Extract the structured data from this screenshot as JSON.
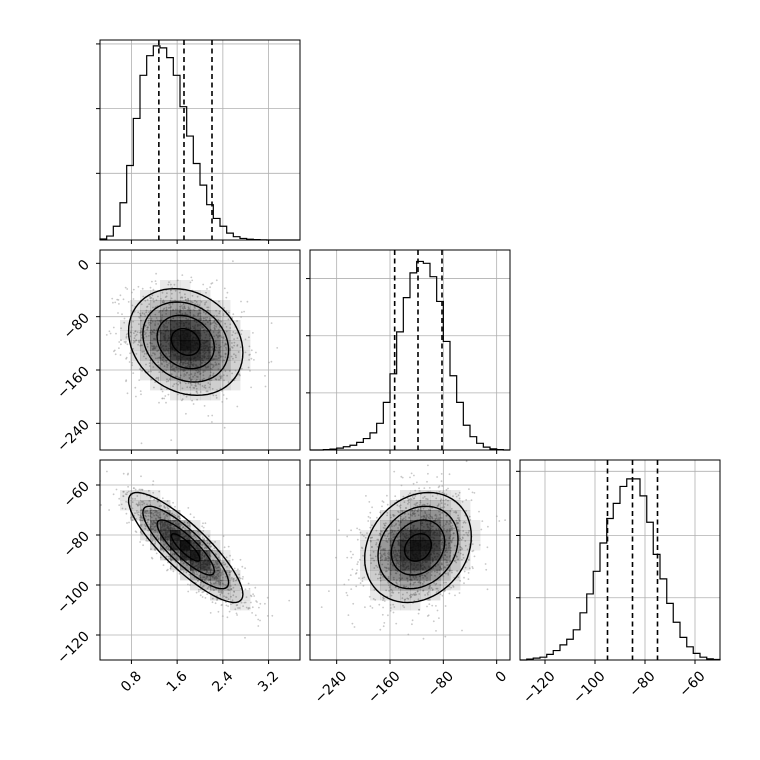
{
  "chart_data": {
    "type": "corner",
    "colors": {
      "line": "#000000",
      "grid": "#b0b0b0",
      "density": "#000000",
      "points": "#9a9a9a"
    },
    "grid": true,
    "parameters": [
      {
        "index": 0,
        "range": [
          0.25,
          3.75
        ],
        "ticks": [
          0.8,
          1.6,
          2.4,
          3.2
        ],
        "tick_labels": [
          "0.8",
          "1.6",
          "2.4",
          "3.2"
        ],
        "quantiles": [
          1.28,
          1.72,
          2.21
        ]
      },
      {
        "index": 1,
        "range": [
          -280,
          20
        ],
        "ticks": [
          -240,
          -160,
          -80,
          0
        ],
        "tick_labels": [
          "−240",
          "−160",
          "−80",
          "0"
        ],
        "quantiles": [
          -153,
          -118,
          -82
        ]
      },
      {
        "index": 2,
        "range": [
          -130,
          -50
        ],
        "ticks": [
          -120,
          -100,
          -80,
          -60
        ],
        "tick_labels": [
          "−120",
          "−100",
          "−80",
          "−60"
        ],
        "quantiles": [
          -95,
          -85,
          -75
        ]
      }
    ],
    "histograms": [
      {
        "param": 0,
        "bins": [
          0.25,
          0.367,
          0.483,
          0.6,
          0.717,
          0.833,
          0.95,
          1.067,
          1.183,
          1.3,
          1.417,
          1.533,
          1.65,
          1.767,
          1.883,
          2.0,
          2.117,
          2.233,
          2.35,
          2.467,
          2.583,
          2.7,
          2.817,
          2.933,
          3.05,
          3.167,
          3.283,
          3.4,
          3.517,
          3.633,
          3.75
        ],
        "counts": [
          0.005,
          0.02,
          0.07,
          0.19,
          0.38,
          0.62,
          0.84,
          0.94,
          0.99,
          0.98,
          0.93,
          0.84,
          0.68,
          0.53,
          0.39,
          0.28,
          0.18,
          0.11,
          0.07,
          0.035,
          0.017,
          0.008,
          0.004,
          0.002,
          0.001,
          0.0,
          0.0,
          0.0,
          0.0,
          0.0
        ],
        "ylim": [
          0,
          1.02
        ],
        "yticks": [
          0.34,
          0.67,
          1.0
        ]
      },
      {
        "param": 1,
        "bins": [
          -280,
          -270,
          -260,
          -250,
          -240,
          -230,
          -220,
          -210,
          -200,
          -190,
          -180,
          -170,
          -160,
          -150,
          -140,
          -130,
          -120,
          -110,
          -100,
          -90,
          -80,
          -70,
          -60,
          -50,
          -40,
          -30,
          -20,
          -10,
          0,
          10,
          20
        ],
        "counts": [
          0.0,
          0.0,
          0.002,
          0.005,
          0.01,
          0.017,
          0.025,
          0.04,
          0.06,
          0.09,
          0.14,
          0.25,
          0.4,
          0.62,
          0.8,
          0.93,
          0.99,
          0.98,
          0.91,
          0.78,
          0.57,
          0.39,
          0.25,
          0.13,
          0.07,
          0.035,
          0.015,
          0.006,
          0.002,
          0.0
        ],
        "ylim": [
          0,
          1.05
        ],
        "yticks": [
          0.3,
          0.6,
          0.9
        ]
      },
      {
        "param": 2,
        "bins": [
          -130,
          -127.3,
          -124.7,
          -122,
          -119.3,
          -116.7,
          -114,
          -111.3,
          -108.7,
          -106,
          -103.3,
          -100.7,
          -98,
          -95.3,
          -92.7,
          -90,
          -87.3,
          -84.7,
          -82,
          -79.3,
          -76.7,
          -74,
          -71.3,
          -68.7,
          -66,
          -63.3,
          -60.7,
          -58,
          -55.3,
          -52.7,
          -50
        ],
        "counts": [
          0.0,
          0.005,
          0.01,
          0.015,
          0.03,
          0.05,
          0.08,
          0.11,
          0.16,
          0.25,
          0.35,
          0.47,
          0.62,
          0.75,
          0.83,
          0.92,
          0.96,
          0.96,
          0.87,
          0.73,
          0.56,
          0.43,
          0.3,
          0.2,
          0.12,
          0.07,
          0.035,
          0.015,
          0.006,
          0.003
        ],
        "ylim": [
          0,
          1.06
        ],
        "yticks": [
          0.33,
          0.66,
          1.0
        ]
      }
    ],
    "pairs": [
      {
        "x": 0,
        "y": 1,
        "center": [
          1.75,
          -118
        ],
        "sigma": [
          0.5,
          40
        ],
        "rho": -0.2
      },
      {
        "x": 0,
        "y": 2,
        "center": [
          1.75,
          -85
        ],
        "sigma": [
          0.5,
          11
        ],
        "rho": -0.85
      },
      {
        "x": 1,
        "y": 2,
        "center": [
          -118,
          -85
        ],
        "sigma": [
          40,
          11
        ],
        "rho": 0.2
      }
    ]
  }
}
